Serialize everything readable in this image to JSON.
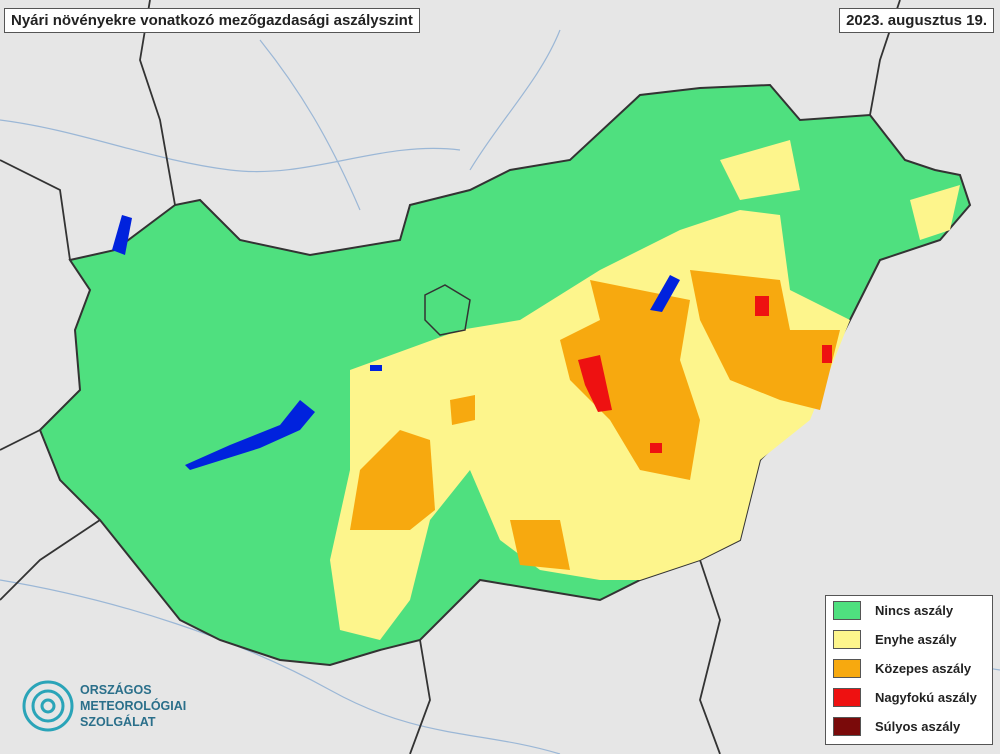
{
  "header": {
    "title": "Nyári növényekre vonatkozó mezőgazdasági aszályszint",
    "date": "2023. augusztus 19."
  },
  "legend": {
    "items": [
      {
        "label": "Nincs aszály",
        "color": "#4fe07f"
      },
      {
        "label": "Enyhe aszály",
        "color": "#fdf58c"
      },
      {
        "label": "Közepes aszály",
        "color": "#f7a90f"
      },
      {
        "label": "Nagyfokú aszály",
        "color": "#ee1111"
      },
      {
        "label": "Súlyos aszály",
        "color": "#7a0a0a"
      }
    ]
  },
  "logo": {
    "lines": [
      "ORSZÁGOS",
      "METEOROLÓGIAI",
      "SZOLGÁLAT"
    ]
  }
}
